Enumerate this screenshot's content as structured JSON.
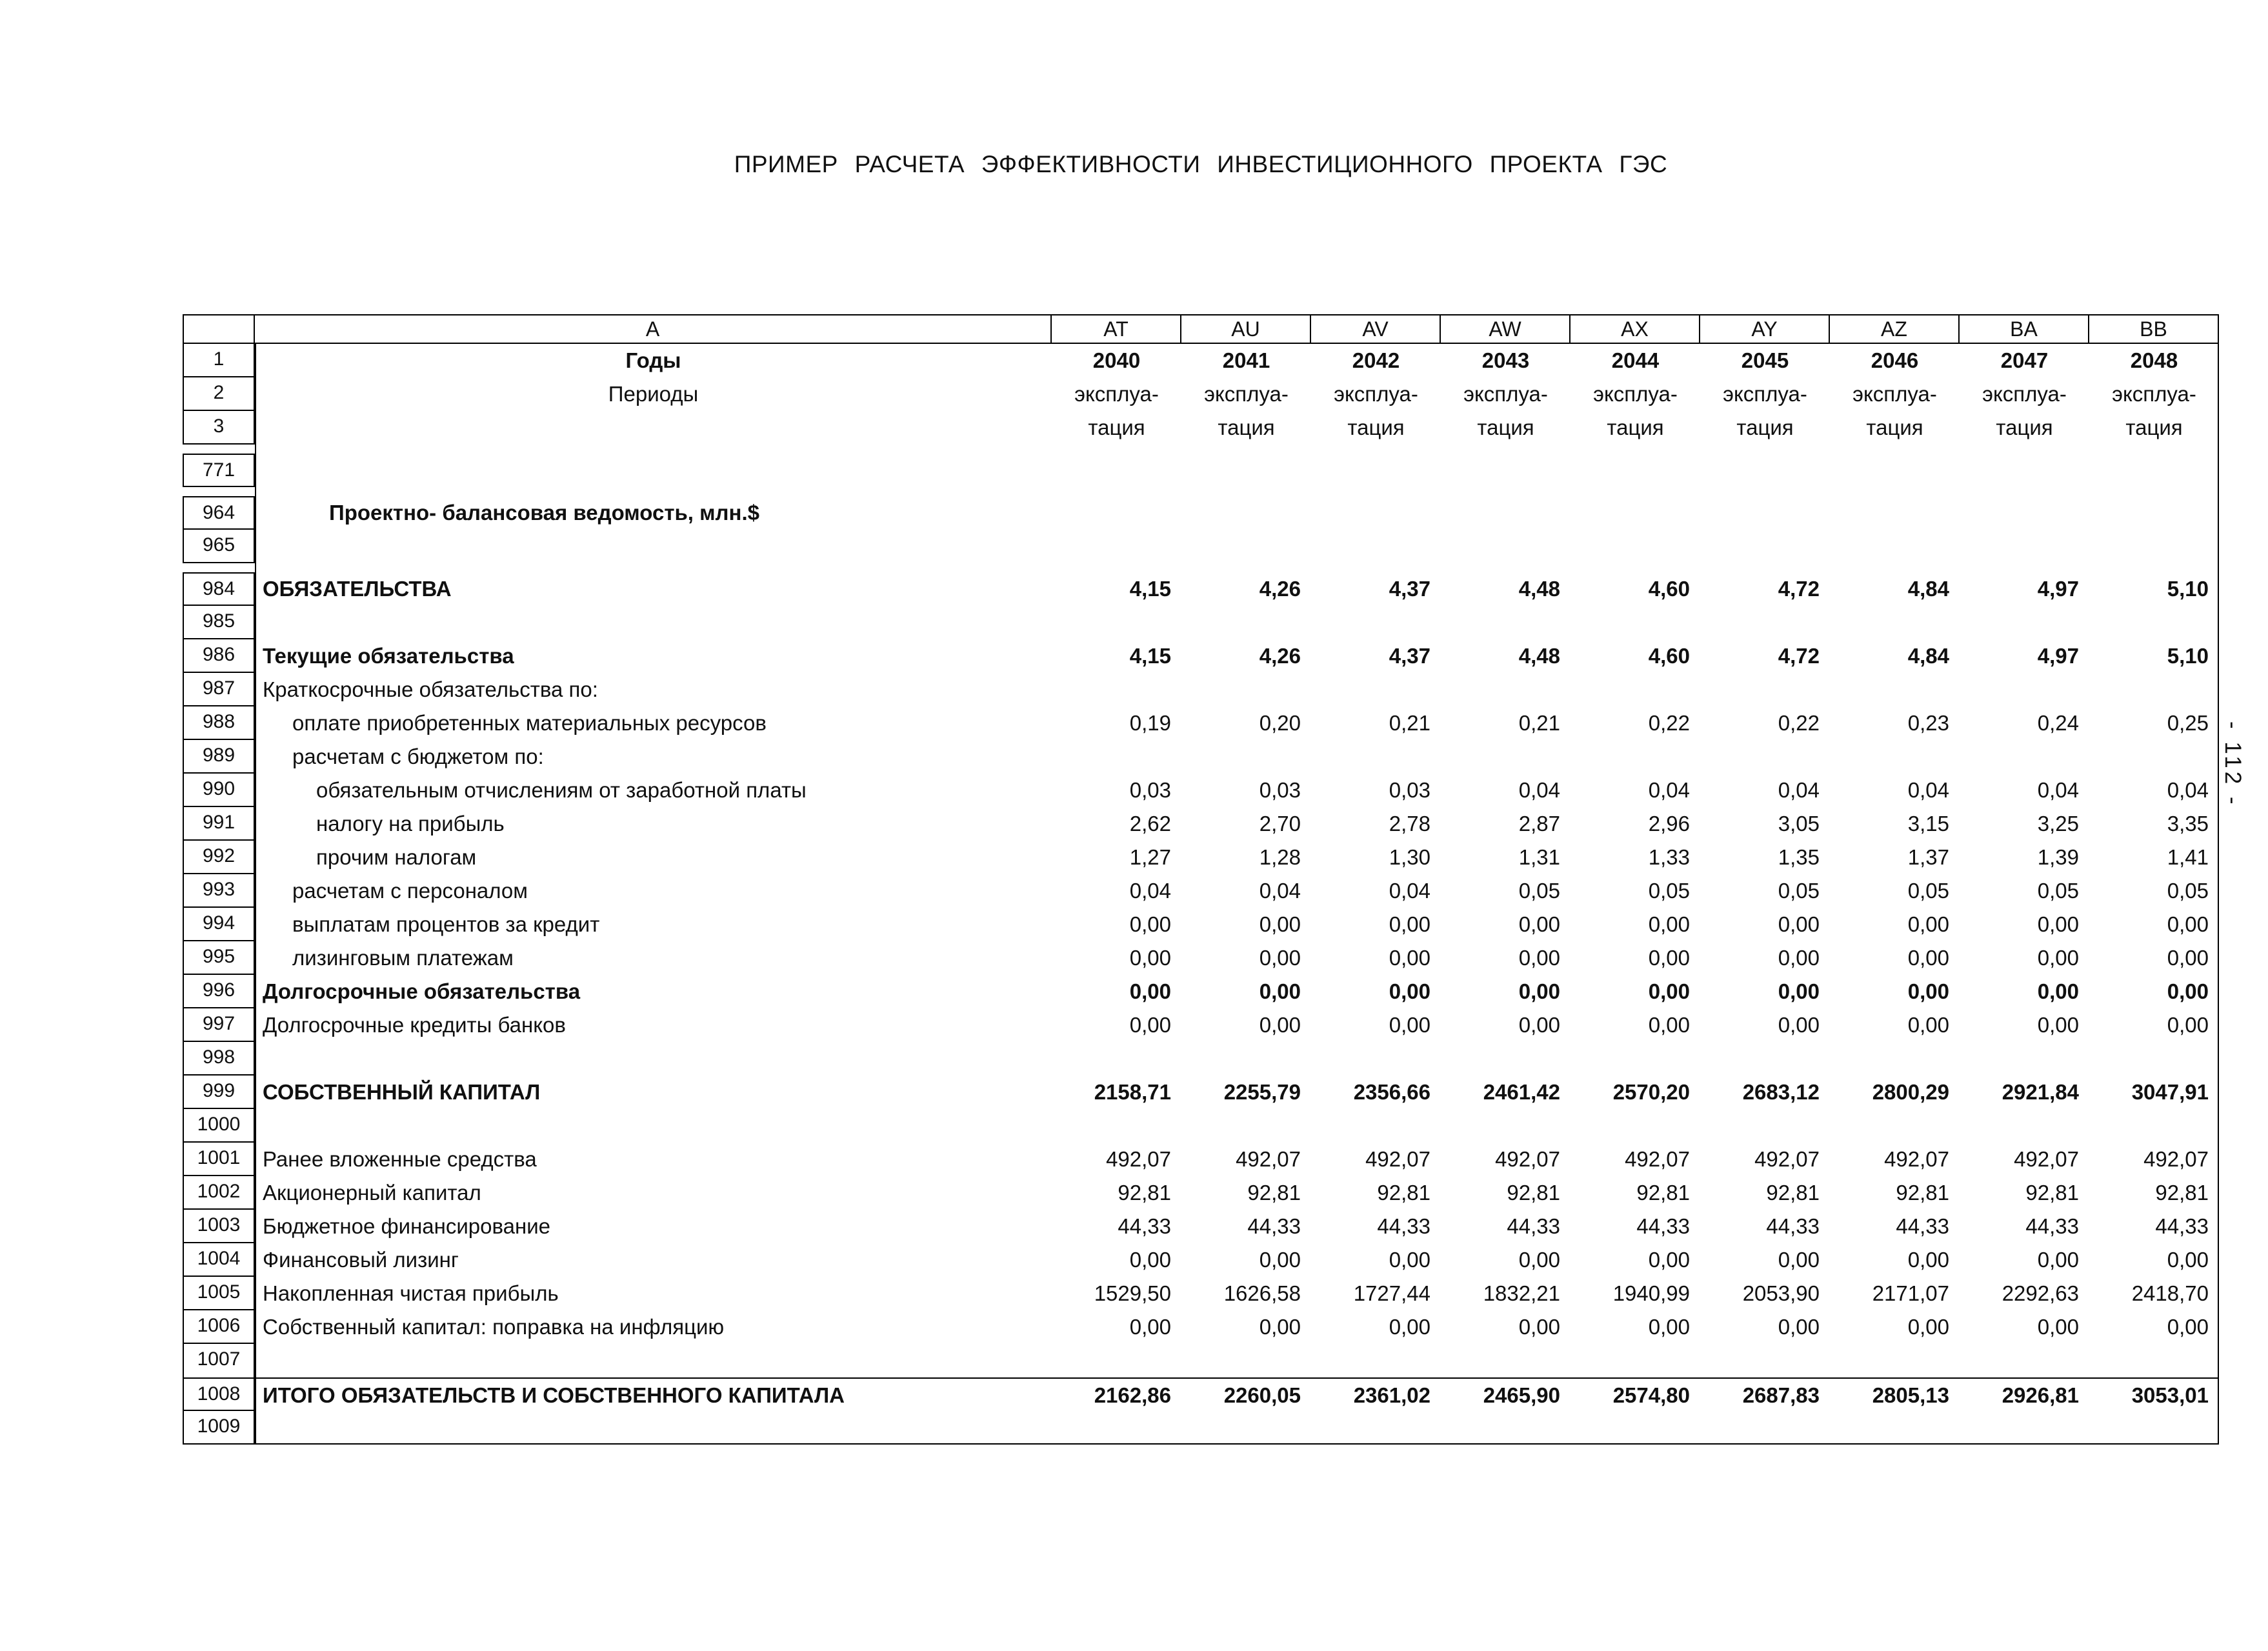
{
  "page": {
    "title": "ПРИМЕР РАСЧЕТА ЭФФЕКТИВНОСТИ ИНВЕСТИЦИОННОГО ПРОЕКТА ГЭС",
    "page_number": "- 112 -"
  },
  "table": {
    "corner_header": "",
    "label_column_header": "A",
    "value_column_headers": [
      "AT",
      "AU",
      "AV",
      "AW",
      "AX",
      "AY",
      "AZ",
      "BA",
      "BB"
    ],
    "rows": [
      {
        "num": "1",
        "label": "Годы",
        "values": [
          "2040",
          "2041",
          "2042",
          "2043",
          "2044",
          "2045",
          "2046",
          "2047",
          "2048"
        ]
      },
      {
        "num": "2",
        "label": "Периоды",
        "values": [
          "эксплуа-",
          "эксплуа-",
          "эксплуа-",
          "эксплуа-",
          "эксплуа-",
          "эксплуа-",
          "эксплуа-",
          "эксплуа-",
          "эксплуа-"
        ]
      },
      {
        "num": "3",
        "label": "",
        "values": [
          "тация",
          "тация",
          "тация",
          "тация",
          "тация",
          "тация",
          "тация",
          "тация",
          "тация"
        ]
      },
      {
        "num": "771",
        "label": "",
        "values": []
      },
      {
        "num": "964",
        "label": "Проектно- балансовая ведомость, млн.$",
        "values": []
      },
      {
        "num": "965",
        "label": "",
        "values": []
      },
      {
        "num": "984",
        "label": "ОБЯЗАТЕЛЬСТВА",
        "values": [
          "4,15",
          "4,26",
          "4,37",
          "4,48",
          "4,60",
          "4,72",
          "4,84",
          "4,97",
          "5,10"
        ]
      },
      {
        "num": "985",
        "label": "",
        "values": []
      },
      {
        "num": "986",
        "label": "Текущие обязательства",
        "values": [
          "4,15",
          "4,26",
          "4,37",
          "4,48",
          "4,60",
          "4,72",
          "4,84",
          "4,97",
          "5,10"
        ]
      },
      {
        "num": "987",
        "label": "Краткосрочные обязательства по:",
        "values": []
      },
      {
        "num": "988",
        "label": "оплате приобретенных материальных ресурсов",
        "values": [
          "0,19",
          "0,20",
          "0,21",
          "0,21",
          "0,22",
          "0,22",
          "0,23",
          "0,24",
          "0,25"
        ]
      },
      {
        "num": "989",
        "label": "расчетам с бюджетом по:",
        "values": []
      },
      {
        "num": "990",
        "label": "обязательным отчислениям от заработной платы",
        "values": [
          "0,03",
          "0,03",
          "0,03",
          "0,04",
          "0,04",
          "0,04",
          "0,04",
          "0,04",
          "0,04"
        ]
      },
      {
        "num": "991",
        "label": "налогу на прибыль",
        "values": [
          "2,62",
          "2,70",
          "2,78",
          "2,87",
          "2,96",
          "3,05",
          "3,15",
          "3,25",
          "3,35"
        ]
      },
      {
        "num": "992",
        "label": "прочим налогам",
        "values": [
          "1,27",
          "1,28",
          "1,30",
          "1,31",
          "1,33",
          "1,35",
          "1,37",
          "1,39",
          "1,41"
        ]
      },
      {
        "num": "993",
        "label": "расчетам с персоналом",
        "values": [
          "0,04",
          "0,04",
          "0,04",
          "0,05",
          "0,05",
          "0,05",
          "0,05",
          "0,05",
          "0,05"
        ]
      },
      {
        "num": "994",
        "label": "выплатам процентов за кредит",
        "values": [
          "0,00",
          "0,00",
          "0,00",
          "0,00",
          "0,00",
          "0,00",
          "0,00",
          "0,00",
          "0,00"
        ]
      },
      {
        "num": "995",
        "label": "лизинговым платежам",
        "values": [
          "0,00",
          "0,00",
          "0,00",
          "0,00",
          "0,00",
          "0,00",
          "0,00",
          "0,00",
          "0,00"
        ]
      },
      {
        "num": "996",
        "label": "Долгосрочные обязательства",
        "values": [
          "0,00",
          "0,00",
          "0,00",
          "0,00",
          "0,00",
          "0,00",
          "0,00",
          "0,00",
          "0,00"
        ]
      },
      {
        "num": "997",
        "label": "Долгосрочные кредиты банков",
        "values": [
          "0,00",
          "0,00",
          "0,00",
          "0,00",
          "0,00",
          "0,00",
          "0,00",
          "0,00",
          "0,00"
        ]
      },
      {
        "num": "998",
        "label": "",
        "values": []
      },
      {
        "num": "999",
        "label": "СОБСТВЕННЫЙ КАПИТАЛ",
        "values": [
          "2158,71",
          "2255,79",
          "2356,66",
          "2461,42",
          "2570,20",
          "2683,12",
          "2800,29",
          "2921,84",
          "3047,91"
        ]
      },
      {
        "num": "1000",
        "label": "",
        "values": []
      },
      {
        "num": "1001",
        "label": "Ранее вложенные средства",
        "values": [
          "492,07",
          "492,07",
          "492,07",
          "492,07",
          "492,07",
          "492,07",
          "492,07",
          "492,07",
          "492,07"
        ]
      },
      {
        "num": "1002",
        "label": "Акционерный капитал",
        "values": [
          "92,81",
          "92,81",
          "92,81",
          "92,81",
          "92,81",
          "92,81",
          "92,81",
          "92,81",
          "92,81"
        ]
      },
      {
        "num": "1003",
        "label": "Бюджетное финансирование",
        "values": [
          "44,33",
          "44,33",
          "44,33",
          "44,33",
          "44,33",
          "44,33",
          "44,33",
          "44,33",
          "44,33"
        ]
      },
      {
        "num": "1004",
        "label": "Финансовый лизинг",
        "values": [
          "0,00",
          "0,00",
          "0,00",
          "0,00",
          "0,00",
          "0,00",
          "0,00",
          "0,00",
          "0,00"
        ]
      },
      {
        "num": "1005",
        "label": "Накопленная чистая прибыль",
        "values": [
          "1529,50",
          "1626,58",
          "1727,44",
          "1832,21",
          "1940,99",
          "2053,90",
          "2171,07",
          "2292,63",
          "2418,70"
        ]
      },
      {
        "num": "1006",
        "label": "Собственный капитал: поправка на инфляцию",
        "values": [
          "0,00",
          "0,00",
          "0,00",
          "0,00",
          "0,00",
          "0,00",
          "0,00",
          "0,00",
          "0,00"
        ]
      },
      {
        "num": "1007",
        "label": "",
        "values": []
      },
      {
        "num": "1008",
        "label": "ИТОГО ОБЯЗАТЕЛЬСТВ И СОБСТВЕННОГО КАПИТАЛА",
        "values": [
          "2162,86",
          "2260,05",
          "2361,02",
          "2465,90",
          "2574,80",
          "2687,83",
          "2805,13",
          "2926,81",
          "3053,01"
        ]
      },
      {
        "num": "1009",
        "label": "",
        "values": []
      }
    ]
  }
}
